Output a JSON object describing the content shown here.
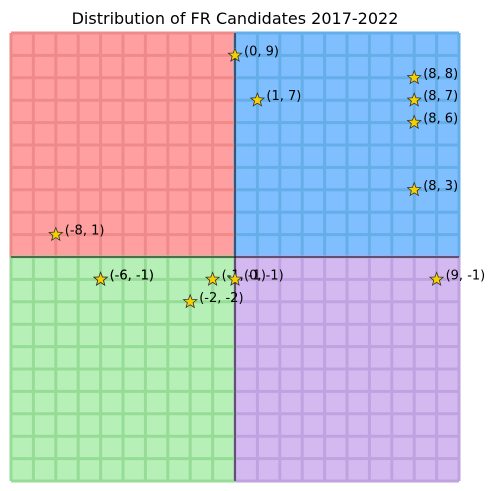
{
  "chart_data": {
    "type": "scatter",
    "title": "Distribution of FR Candidates 2017-2022",
    "xlim": [
      -10,
      10
    ],
    "ylim": [
      -10,
      10
    ],
    "grid": true,
    "marker": "star",
    "marker_color": "#f5d000",
    "quadrant_colors": {
      "top_left": "#ff9f9f",
      "top_right": "#7fbfff",
      "bottom_left": "#b6f0b6",
      "bottom_right": "#d4b9f1"
    },
    "quadrant_grid_colors": {
      "top_left": "#ef8a8a",
      "top_right": "#66aee8",
      "bottom_left": "#96dc96",
      "bottom_right": "#bfa2e0"
    },
    "points": [
      {
        "x": 0,
        "y": 9,
        "label": "(0, 9)"
      },
      {
        "x": 1,
        "y": 7,
        "label": "(1, 7)"
      },
      {
        "x": 8,
        "y": 8,
        "label": "(8, 8)"
      },
      {
        "x": 8,
        "y": 7,
        "label": "(8, 7)"
      },
      {
        "x": 8,
        "y": 6,
        "label": "(8, 6)"
      },
      {
        "x": 8,
        "y": 3,
        "label": "(8, 3)"
      },
      {
        "x": -8,
        "y": 1,
        "label": "(-8, 1)"
      },
      {
        "x": -6,
        "y": -1,
        "label": "(-6, -1)"
      },
      {
        "x": -6,
        "y": -1,
        "label": "(-6, -1)"
      },
      {
        "x": -1,
        "y": -1,
        "label": "(-1, -1)"
      },
      {
        "x": 0,
        "y": -1,
        "label": "(0, -1)"
      },
      {
        "x": -2,
        "y": -2,
        "label": "(-2, -2)"
      },
      {
        "x": 9,
        "y": -1,
        "label": "(9, -1)"
      }
    ]
  }
}
